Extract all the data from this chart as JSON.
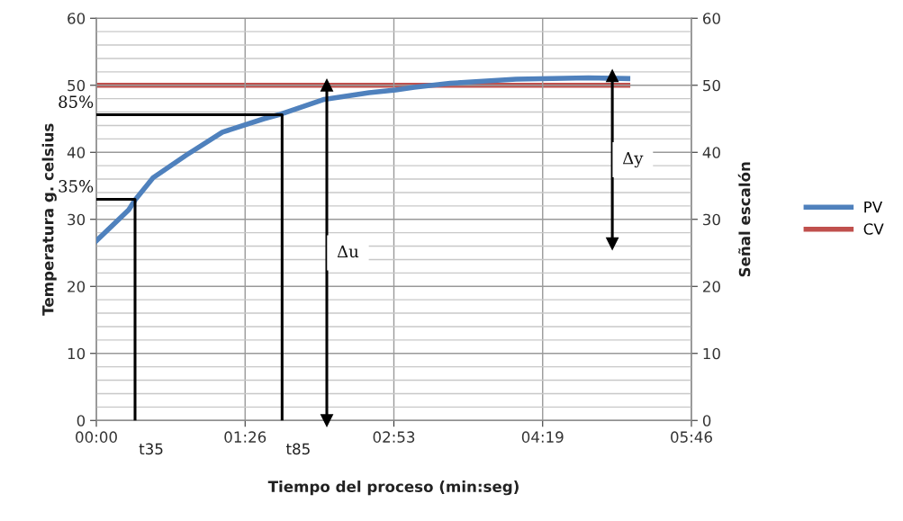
{
  "chart_data": {
    "type": "line",
    "xlabel": "Tiempo del proceso (min:seg)",
    "ylabel": "Temperatura g. celsius",
    "y2label": "Señal escalón",
    "xlim": [
      0,
      346
    ],
    "xticks": [
      {
        "value": 0,
        "label": "00:00"
      },
      {
        "value": 86.5,
        "label": "01:26"
      },
      {
        "value": 173,
        "label": "02:53"
      },
      {
        "value": 259.5,
        "label": "04:19"
      },
      {
        "value": 346,
        "label": "05:46"
      }
    ],
    "ylim": [
      0,
      60
    ],
    "yticks": [
      0,
      10,
      20,
      30,
      40,
      50,
      60
    ],
    "y2lim": [
      0,
      60
    ],
    "y2ticks": [
      0,
      10,
      20,
      30,
      40,
      50,
      60
    ],
    "grid": true,
    "legend": "right",
    "series": [
      {
        "name": "PV",
        "color": "#4f81bd",
        "x": [
          0,
          18.8,
          22.5,
          33,
          52.4,
          73.3,
          97.4,
          106,
          132.5,
          158.6,
          174,
          184.8,
          205.8,
          244,
          286,
          309
        ],
        "values": [
          26.8,
          31.4,
          32.9,
          36.2,
          39.6,
          43.0,
          45.0,
          45.6,
          47.9,
          48.9,
          49.3,
          49.7,
          50.3,
          50.9,
          51.1,
          51.0
        ]
      },
      {
        "name": "CV",
        "color": "#c0504d",
        "axis": "y2",
        "x": [
          0,
          309
        ],
        "values": [
          50,
          50
        ]
      },
      {
        "color": "#000000",
        "x": [
          0,
          22.5,
          22.5
        ],
        "values": [
          33,
          33,
          0
        ]
      },
      {
        "color": "#000000",
        "x": [
          0,
          108,
          108
        ],
        "values": [
          45.6,
          45.6,
          0
        ]
      },
      {
        "color": "#000000",
        "marker": "triangle",
        "x": [
          134,
          134
        ],
        "values": [
          0,
          50
        ]
      },
      {
        "color": "#000000",
        "marker": "triangle",
        "x": [
          300,
          300
        ],
        "values": [
          26.4,
          51.4
        ]
      }
    ],
    "annotations": [
      {
        "text": "35%",
        "x": 0,
        "y": 33
      },
      {
        "text": "85%",
        "x": 0,
        "y": 45.6
      },
      {
        "text": "t35",
        "x": 22.5,
        "y": 0
      },
      {
        "text": "t85",
        "x": 108,
        "y": 0
      },
      "Δu",
      "Δy"
    ]
  }
}
